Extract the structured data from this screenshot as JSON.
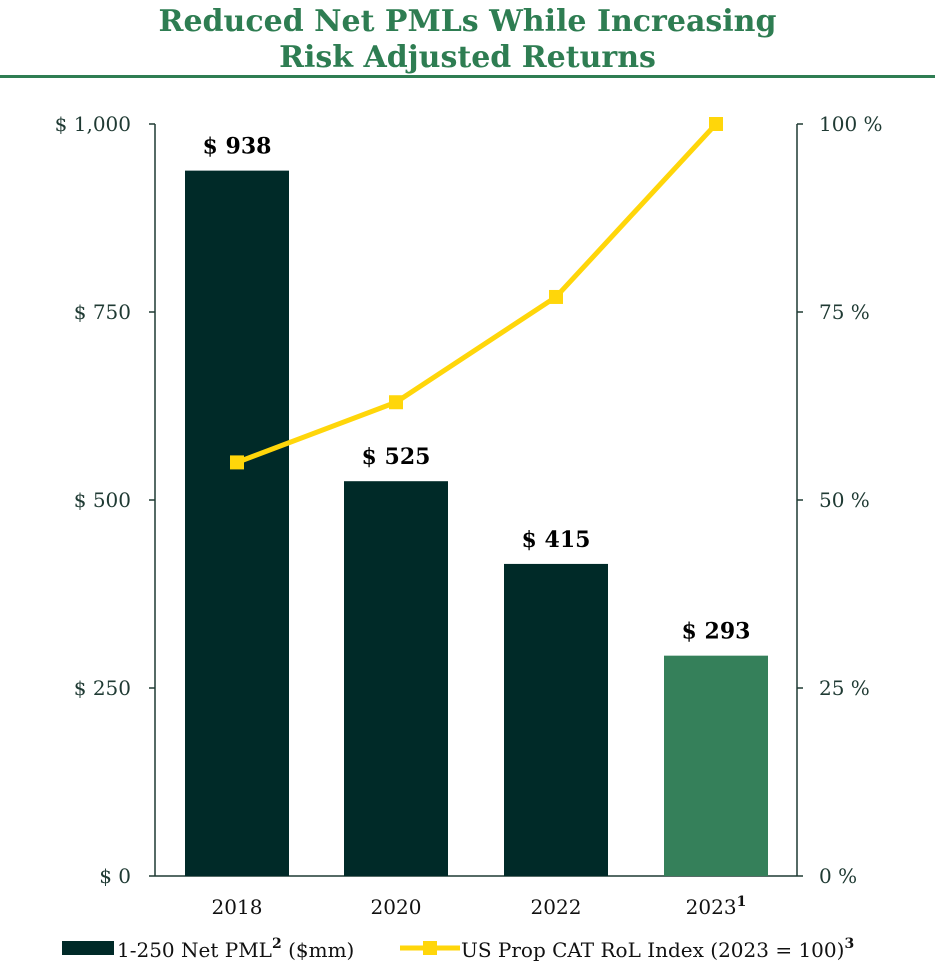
{
  "title_line1": "Reduced Net PMLs While Increasing",
  "title_line2": "Risk Adjusted Returns",
  "chart_data": {
    "type": "bar",
    "categories": [
      "2018",
      "2020",
      "2022",
      "2023"
    ],
    "category_superscripts": [
      "",
      "",
      "",
      "1"
    ],
    "series": [
      {
        "name": "1-250 Net PML",
        "name_superscript": "2",
        "name_suffix": " ($mm)",
        "kind": "bar",
        "axis": "left",
        "values": [
          938,
          525,
          415,
          293
        ],
        "data_labels": [
          "$ 938",
          "$ 525",
          "$ 415",
          "$ 293"
        ],
        "colors": [
          "#002a28",
          "#002a28",
          "#002a28",
          "#35805a"
        ]
      },
      {
        "name": "US Prop CAT RoL Index (2023 = 100)",
        "name_superscript": "3",
        "kind": "line",
        "axis": "right",
        "values": [
          55,
          63,
          77,
          100
        ],
        "color": "#ffd60a"
      }
    ],
    "y_left": {
      "lim": [
        0,
        1000
      ],
      "ticks": [
        0,
        250,
        500,
        750,
        1000
      ],
      "tick_labels": [
        "$ 0",
        "$ 250",
        "$ 500",
        "$ 750",
        "$ 1,000"
      ]
    },
    "y_right": {
      "lim": [
        0,
        100
      ],
      "ticks": [
        0,
        25,
        50,
        75,
        100
      ],
      "tick_labels": [
        "0 %",
        "25 %",
        "50 %",
        "75 %",
        "100 %"
      ]
    },
    "grid": false,
    "legend_position": "bottom"
  }
}
